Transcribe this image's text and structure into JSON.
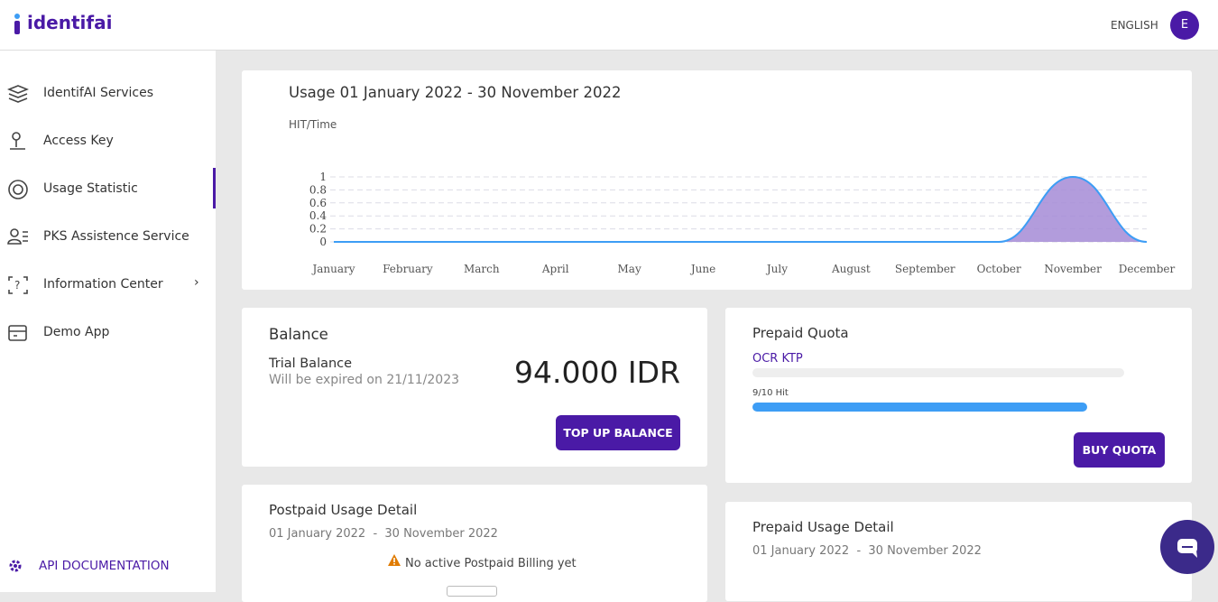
{
  "header": {
    "logo": "identifai",
    "language": "ENGLISH",
    "avatar": "E"
  },
  "sidebar": {
    "items": [
      "IdentifAI Services",
      "Access Key",
      "Usage Statistic",
      "PKS Assistence Service",
      "Information Center",
      "Demo App"
    ],
    "footer": "API DOCUMENTATION"
  },
  "usage": {
    "title": "Usage 01 January 2022  -  30 November 2022",
    "chart_data": {
      "type": "area",
      "y_label": "HIT/Time",
      "categories": [
        "January",
        "February",
        "March",
        "April",
        "May",
        "June",
        "July",
        "August",
        "September",
        "October",
        "November",
        "December"
      ],
      "values": [
        0,
        0,
        0,
        0,
        0,
        0,
        0,
        0,
        0,
        0,
        1,
        0
      ],
      "ylim": [
        0,
        1
      ],
      "yticks": [
        0,
        0.2,
        0.4,
        0.6,
        0.8,
        1
      ],
      "grid": true,
      "color": "#3d9df5",
      "fill": "#a58bd6"
    }
  },
  "balance": {
    "title": "Balance",
    "subtitle": "Trial Balance",
    "expiry": "Will be expired on 21/11/2023",
    "amount": "94.000 IDR",
    "button": "TOP UP BALANCE"
  },
  "prepaid_quota": {
    "title": "Prepaid Quota",
    "service": "OCR KTP",
    "used": 9,
    "total": 10,
    "caption": "9/10 Hit",
    "button": "BUY QUOTA"
  },
  "postpaid_detail": {
    "title": "Postpaid Usage Detail",
    "period": "01 January 2022  -  30 November 2022",
    "notice": "No active Postpaid Billing yet"
  },
  "prepaid_detail": {
    "title": "Prepaid Usage Detail",
    "period": "01 January 2022  -  30 November 2022"
  }
}
